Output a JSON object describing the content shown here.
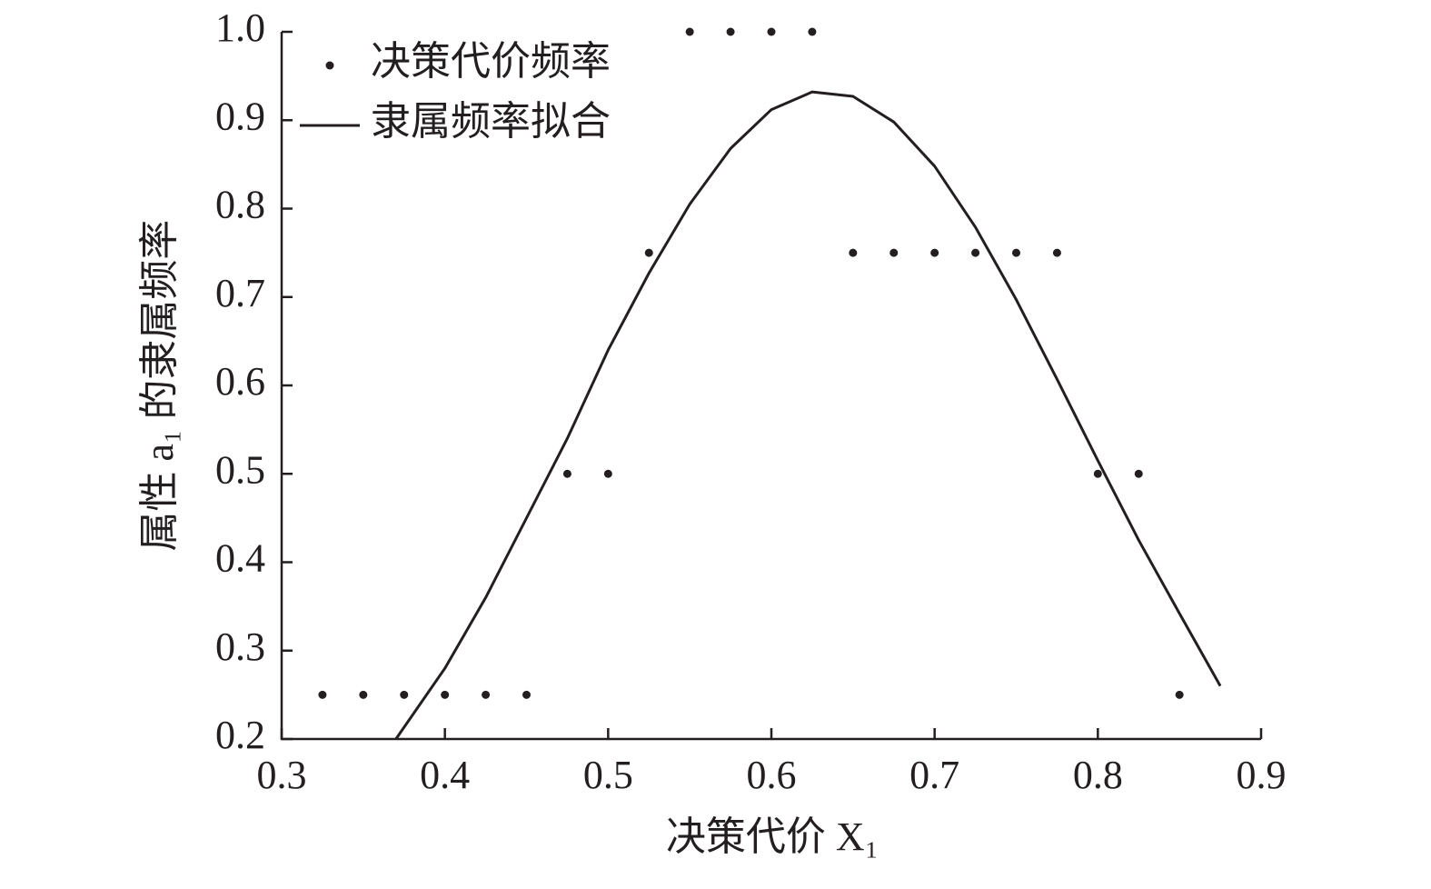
{
  "chart_data": {
    "type": "scatter",
    "xlabel": "决策代价 X₁",
    "ylabel": "属性 a₁ 的隶属频率",
    "xlim": [
      0.3,
      0.9
    ],
    "xticks": [
      {
        "value": 0.3,
        "label": "0.3"
      },
      {
        "value": 0.4,
        "label": "0.4"
      },
      {
        "value": 0.5,
        "label": "0.5"
      },
      {
        "value": 0.6,
        "label": "0.6"
      },
      {
        "value": 0.7,
        "label": "0.7"
      },
      {
        "value": 0.8,
        "label": "0.8"
      },
      {
        "value": 0.9,
        "label": "0.9"
      }
    ],
    "ylim": [
      0.2,
      1.0
    ],
    "yticks": [
      {
        "value": 0.2,
        "label": "0.2"
      },
      {
        "value": 0.3,
        "label": "0.3"
      },
      {
        "value": 0.4,
        "label": "0.4"
      },
      {
        "value": 0.5,
        "label": "0.5"
      },
      {
        "value": 0.6,
        "label": "0.6"
      },
      {
        "value": 0.7,
        "label": "0.7"
      },
      {
        "value": 0.8,
        "label": "0.8"
      },
      {
        "value": 0.9,
        "label": "0.9"
      },
      {
        "value": 1.0,
        "label": "1.0"
      }
    ],
    "grid": false,
    "legend": "upper left",
    "series": [
      {
        "name": "决策代价频率",
        "type": "scatter",
        "color": "#231f20",
        "x": [
          0.325,
          0.35,
          0.375,
          0.4,
          0.425,
          0.45,
          0.475,
          0.5,
          0.525,
          0.55,
          0.575,
          0.6,
          0.625,
          0.65,
          0.675,
          0.7,
          0.725,
          0.75,
          0.775,
          0.8,
          0.825,
          0.85
        ],
        "values": [
          0.25,
          0.25,
          0.25,
          0.25,
          0.25,
          0.25,
          0.5,
          0.5,
          0.75,
          1.0,
          1.0,
          1.0,
          1.0,
          0.75,
          0.75,
          0.75,
          0.75,
          0.75,
          0.75,
          0.5,
          0.5,
          0.25
        ]
      },
      {
        "name": "隶属频率拟合",
        "type": "line",
        "color": "#231f20",
        "x": [
          0.37,
          0.4,
          0.425,
          0.45,
          0.475,
          0.5,
          0.525,
          0.55,
          0.575,
          0.6,
          0.625,
          0.65,
          0.675,
          0.7,
          0.725,
          0.75,
          0.775,
          0.8,
          0.825,
          0.85,
          0.875
        ],
        "values": [
          0.2,
          0.28,
          0.36,
          0.45,
          0.54,
          0.64,
          0.727,
          0.805,
          0.868,
          0.912,
          0.932,
          0.927,
          0.898,
          0.848,
          0.779,
          0.697,
          0.607,
          0.515,
          0.425,
          0.342,
          0.26
        ]
      }
    ]
  }
}
